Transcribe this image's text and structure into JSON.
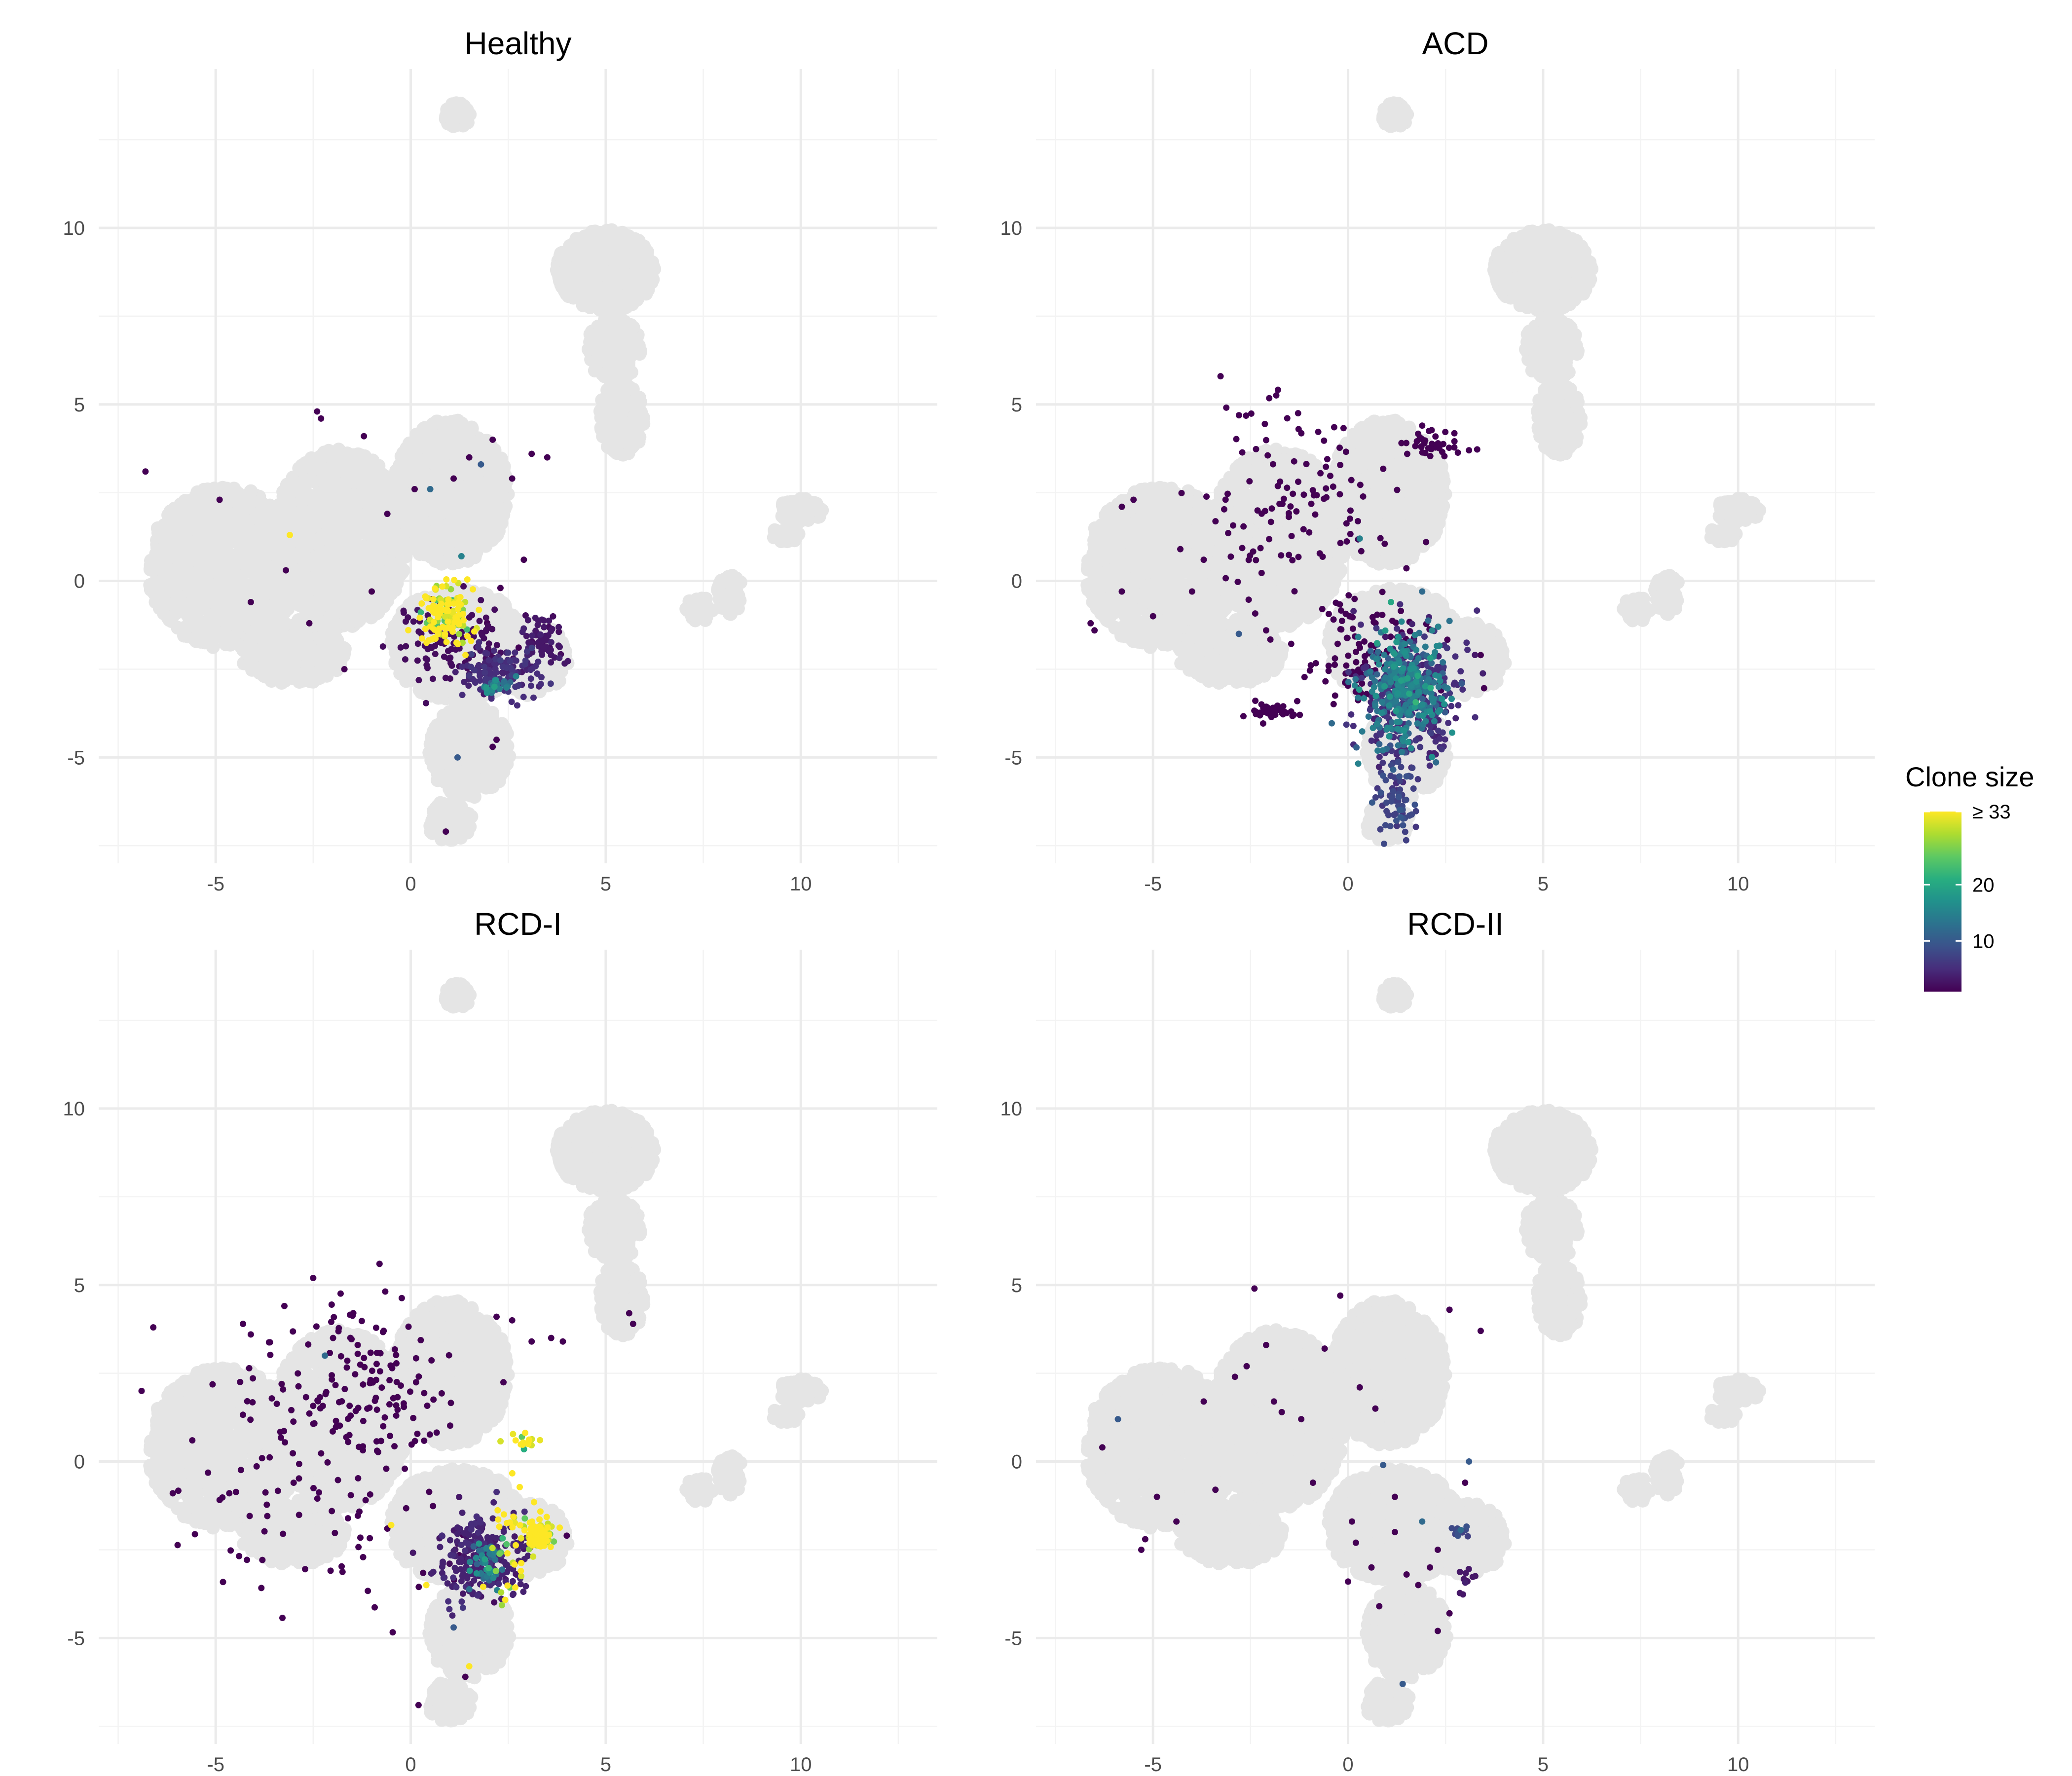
{
  "chart_data": {
    "type": "scatter",
    "x_ticks": [
      -5,
      0,
      5,
      10
    ],
    "y_ticks": [
      -5,
      0,
      5,
      10
    ],
    "xlim": [
      -8,
      13.5
    ],
    "ylim": [
      -8,
      14.5
    ],
    "legend": {
      "title": "Clone size",
      "placement": "right",
      "scale": "viridis",
      "range": [
        1,
        33
      ],
      "tick_labels": [
        "≥ 33",
        "20",
        "10"
      ],
      "tick_values": [
        33,
        20,
        10
      ]
    },
    "background_color": "#e5e5e5",
    "panels": [
      {
        "title": "Healthy",
        "clusters": [
          {
            "x": 0.9,
            "y": -1.0,
            "sx": 0.35,
            "sy": 0.45,
            "n": 130,
            "size": 33
          },
          {
            "x": 2.3,
            "y": -2.6,
            "sx": 0.5,
            "sy": 0.35,
            "n": 140,
            "size": 5
          },
          {
            "x": 3.4,
            "y": -1.7,
            "sx": 0.25,
            "sy": 0.35,
            "n": 60,
            "size": 3
          },
          {
            "x": 2.2,
            "y": -2.9,
            "sx": 0.2,
            "sy": 0.15,
            "n": 25,
            "size": 15
          },
          {
            "x": 1.0,
            "y": -1.8,
            "sx": 0.8,
            "sy": 0.6,
            "n": 110,
            "size": 2
          }
        ],
        "points": [
          {
            "x": -6.8,
            "y": 3.1,
            "size": 1
          },
          {
            "x": -4.9,
            "y": 2.3,
            "size": 1
          },
          {
            "x": -3.1,
            "y": 1.3,
            "size": 33
          },
          {
            "x": -2.4,
            "y": 4.8,
            "size": 1
          },
          {
            "x": -2.3,
            "y": 4.6,
            "size": 1
          },
          {
            "x": -1.2,
            "y": 4.1,
            "size": 1
          },
          {
            "x": -4.1,
            "y": -0.6,
            "size": 1
          },
          {
            "x": -3.2,
            "y": 0.3,
            "size": 1
          },
          {
            "x": -2.6,
            "y": -1.2,
            "size": 1
          },
          {
            "x": -1.7,
            "y": -2.5,
            "size": 1
          },
          {
            "x": -1.0,
            "y": -0.3,
            "size": 1
          },
          {
            "x": -0.6,
            "y": 1.9,
            "size": 1
          },
          {
            "x": 0.1,
            "y": 2.6,
            "size": 1
          },
          {
            "x": 0.5,
            "y": 2.6,
            "size": 12
          },
          {
            "x": 1.1,
            "y": 2.9,
            "size": 1
          },
          {
            "x": 1.5,
            "y": 3.5,
            "size": 1
          },
          {
            "x": 1.8,
            "y": 3.3,
            "size": 10
          },
          {
            "x": 2.1,
            "y": 4.0,
            "size": 1
          },
          {
            "x": 2.6,
            "y": 2.9,
            "size": 1
          },
          {
            "x": 3.1,
            "y": 3.6,
            "size": 1
          },
          {
            "x": 3.5,
            "y": 3.5,
            "size": 1
          },
          {
            "x": 1.3,
            "y": 0.7,
            "size": 15
          },
          {
            "x": 2.9,
            "y": 0.6,
            "size": 1
          },
          {
            "x": 1.2,
            "y": -5.0,
            "size": 10
          },
          {
            "x": 0.9,
            "y": -7.1,
            "size": 1
          },
          {
            "x": 2.1,
            "y": -4.7,
            "size": 1
          },
          {
            "x": 2.2,
            "y": -4.5,
            "size": 1
          },
          {
            "x": 2.3,
            "y": -0.2,
            "size": 1
          }
        ]
      },
      {
        "title": "ACD",
        "clusters": [
          {
            "x": 1.4,
            "y": -3.1,
            "sx": 0.55,
            "sy": 0.75,
            "n": 320,
            "size": 14
          },
          {
            "x": 1.6,
            "y": -3.5,
            "sx": 0.7,
            "sy": 1.0,
            "n": 280,
            "size": 5
          },
          {
            "x": 1.2,
            "y": -6.0,
            "sx": 0.25,
            "sy": 0.8,
            "n": 70,
            "size": 8
          },
          {
            "x": -2.0,
            "y": -3.7,
            "sx": 0.3,
            "sy": 0.15,
            "n": 40,
            "size": 1
          },
          {
            "x": 2.2,
            "y": 3.9,
            "sx": 0.4,
            "sy": 0.25,
            "n": 35,
            "size": 1
          },
          {
            "x": -1.5,
            "y": 2.5,
            "sx": 1.1,
            "sy": 1.4,
            "n": 110,
            "size": 1
          },
          {
            "x": 0.4,
            "y": -2.2,
            "sx": 0.9,
            "sy": 0.8,
            "n": 120,
            "size": 1
          }
        ],
        "points": [
          {
            "x": -6.6,
            "y": -1.2,
            "size": 1
          },
          {
            "x": -6.5,
            "y": -1.4,
            "size": 1
          },
          {
            "x": -5.8,
            "y": 2.1,
            "size": 1
          },
          {
            "x": -5.5,
            "y": 2.3,
            "size": 1
          },
          {
            "x": -5.8,
            "y": -0.3,
            "size": 1
          },
          {
            "x": -5.0,
            "y": -1.0,
            "size": 1
          },
          {
            "x": -4.3,
            "y": 0.9,
            "size": 1
          },
          {
            "x": -4.0,
            "y": -0.3,
            "size": 1
          },
          {
            "x": -3.7,
            "y": 0.6,
            "size": 1
          },
          {
            "x": -2.8,
            "y": -1.5,
            "size": 10
          },
          {
            "x": -2.1,
            "y": -1.4,
            "size": 1
          },
          {
            "x": 0.3,
            "y": 1.2,
            "size": 15
          },
          {
            "x": 1.1,
            "y": -0.6,
            "size": 20
          },
          {
            "x": 1.9,
            "y": -0.3,
            "size": 12
          },
          {
            "x": 2.0,
            "y": 1.1,
            "size": 1
          },
          {
            "x": 3.1,
            "y": 3.7,
            "size": 1
          },
          {
            "x": 3.4,
            "y": -2.1,
            "size": 1
          },
          {
            "x": 1.9,
            "y": 4.4,
            "size": 1
          }
        ]
      },
      {
        "title": "RCD-I",
        "clusters": [
          {
            "x": 1.8,
            "y": -2.7,
            "sx": 0.5,
            "sy": 0.6,
            "n": 260,
            "size": 4
          },
          {
            "x": 1.9,
            "y": -2.9,
            "sx": 0.25,
            "sy": 0.3,
            "n": 40,
            "size": 15
          },
          {
            "x": 3.3,
            "y": -2.1,
            "sx": 0.18,
            "sy": 0.2,
            "n": 110,
            "size": 33
          },
          {
            "x": 2.8,
            "y": -1.8,
            "sx": 0.4,
            "sy": 0.5,
            "n": 25,
            "size": 33
          },
          {
            "x": 2.9,
            "y": 0.6,
            "sx": 0.25,
            "sy": 0.1,
            "n": 15,
            "size": 33
          },
          {
            "x": 2.5,
            "y": -2.9,
            "sx": 0.3,
            "sy": 0.6,
            "n": 18,
            "size": 33
          },
          {
            "x": -1.3,
            "y": 2.1,
            "sx": 1.4,
            "sy": 1.2,
            "n": 150,
            "size": 1
          },
          {
            "x": -2.5,
            "y": -1.5,
            "sx": 1.8,
            "sy": 1.5,
            "n": 70,
            "size": 1
          }
        ],
        "points": [
          {
            "x": -6.6,
            "y": 3.8,
            "size": 1
          },
          {
            "x": -6.9,
            "y": 2.0,
            "size": 1
          },
          {
            "x": -6.1,
            "y": -0.9,
            "size": 1
          },
          {
            "x": -5.6,
            "y": 0.6,
            "size": 1
          },
          {
            "x": -4.3,
            "y": 3.9,
            "size": 1
          },
          {
            "x": -4.1,
            "y": 3.6,
            "size": 1
          },
          {
            "x": -2.5,
            "y": 5.2,
            "size": 1
          },
          {
            "x": -2.2,
            "y": 3.0,
            "size": 12
          },
          {
            "x": -0.8,
            "y": 5.6,
            "size": 1
          },
          {
            "x": -0.6,
            "y": -1.9,
            "size": 1
          },
          {
            "x": 2.2,
            "y": 4.1,
            "size": 1
          },
          {
            "x": 2.6,
            "y": 4.0,
            "size": 1
          },
          {
            "x": 3.1,
            "y": 3.4,
            "size": 1
          },
          {
            "x": 3.6,
            "y": 3.5,
            "size": 1
          },
          {
            "x": 3.9,
            "y": 3.4,
            "size": 1
          },
          {
            "x": 5.6,
            "y": 4.2,
            "size": 1
          },
          {
            "x": 5.7,
            "y": 3.9,
            "size": 1
          },
          {
            "x": 1.4,
            "y": -6.1,
            "size": 1
          },
          {
            "x": 1.5,
            "y": -5.8,
            "size": 33
          },
          {
            "x": 0.2,
            "y": -6.9,
            "size": 1
          },
          {
            "x": -0.5,
            "y": -1.8,
            "size": 33
          },
          {
            "x": 0.4,
            "y": -3.5,
            "size": 33
          },
          {
            "x": 1.1,
            "y": -4.7,
            "size": 10
          },
          {
            "x": 4.0,
            "y": -2.1,
            "size": 1
          }
        ]
      },
      {
        "title": "RCD-II",
        "clusters": [
          {
            "x": 2.9,
            "y": -2.0,
            "sx": 0.15,
            "sy": 0.15,
            "n": 14,
            "size": 8
          },
          {
            "x": 3.0,
            "y": -3.3,
            "sx": 0.15,
            "sy": 0.2,
            "n": 10,
            "size": 3
          }
        ],
        "points": [
          {
            "x": -6.3,
            "y": 0.4,
            "size": 1
          },
          {
            "x": -5.9,
            "y": 1.2,
            "size": 10
          },
          {
            "x": -5.2,
            "y": -2.2,
            "size": 1
          },
          {
            "x": -5.3,
            "y": -2.5,
            "size": 1
          },
          {
            "x": -4.9,
            "y": -1.0,
            "size": 1
          },
          {
            "x": -4.4,
            "y": -1.7,
            "size": 1
          },
          {
            "x": -3.7,
            "y": 1.7,
            "size": 1
          },
          {
            "x": -3.4,
            "y": -0.8,
            "size": 1
          },
          {
            "x": -2.9,
            "y": 2.4,
            "size": 1
          },
          {
            "x": -2.6,
            "y": 2.7,
            "size": 1
          },
          {
            "x": -2.4,
            "y": 4.9,
            "size": 1
          },
          {
            "x": -2.1,
            "y": 3.3,
            "size": 1
          },
          {
            "x": -1.9,
            "y": 1.7,
            "size": 1
          },
          {
            "x": -1.7,
            "y": 1.4,
            "size": 1
          },
          {
            "x": -1.2,
            "y": 1.2,
            "size": 1
          },
          {
            "x": -0.9,
            "y": -0.6,
            "size": 1
          },
          {
            "x": -0.6,
            "y": 3.2,
            "size": 1
          },
          {
            "x": -0.2,
            "y": 4.7,
            "size": 1
          },
          {
            "x": 0.3,
            "y": 2.1,
            "size": 1
          },
          {
            "x": 0.7,
            "y": 1.5,
            "size": 1
          },
          {
            "x": 0.1,
            "y": -1.7,
            "size": 1
          },
          {
            "x": 0.2,
            "y": -2.3,
            "size": 1
          },
          {
            "x": 0.0,
            "y": -3.4,
            "size": 1
          },
          {
            "x": 0.6,
            "y": -3.0,
            "size": 1
          },
          {
            "x": 0.9,
            "y": -0.1,
            "size": 10
          },
          {
            "x": 1.2,
            "y": -1.0,
            "size": 1
          },
          {
            "x": 1.5,
            "y": -3.2,
            "size": 1
          },
          {
            "x": 1.8,
            "y": -3.5,
            "size": 1
          },
          {
            "x": 2.1,
            "y": -3.0,
            "size": 1
          },
          {
            "x": 1.9,
            "y": -1.7,
            "size": 12
          },
          {
            "x": 2.6,
            "y": -4.3,
            "size": 1
          },
          {
            "x": 2.3,
            "y": -4.8,
            "size": 1
          },
          {
            "x": 1.4,
            "y": -6.3,
            "size": 10
          },
          {
            "x": 3.1,
            "y": -0.0,
            "size": 10
          },
          {
            "x": 3.0,
            "y": -0.6,
            "size": 1
          },
          {
            "x": 2.6,
            "y": 4.3,
            "size": 1
          },
          {
            "x": 3.4,
            "y": 3.7,
            "size": 1
          },
          {
            "x": 2.3,
            "y": -2.5,
            "size": 1
          },
          {
            "x": 0.8,
            "y": -4.1,
            "size": 1
          },
          {
            "x": 1.2,
            "y": -2.0,
            "size": 1
          }
        ]
      }
    ]
  }
}
